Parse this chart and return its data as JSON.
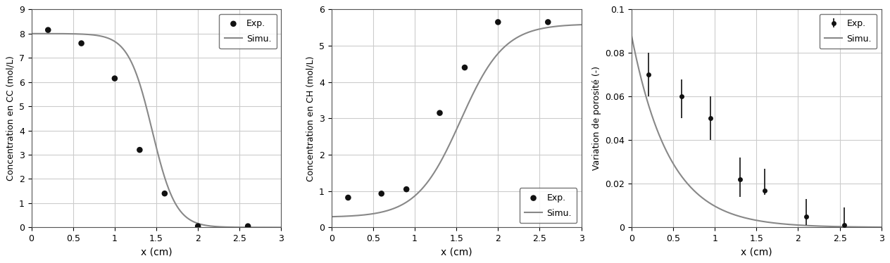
{
  "plot1": {
    "ylabel": "Concentration en CC (mol/L)",
    "xlabel": "x (cm)",
    "ylim": [
      0,
      9
    ],
    "xlim": [
      0,
      3
    ],
    "yticks": [
      0,
      1,
      2,
      3,
      4,
      5,
      6,
      7,
      8,
      9
    ],
    "ytick_labels": [
      "0",
      "1",
      "2",
      "3",
      "4",
      "5",
      "6",
      "7",
      "8",
      "9"
    ],
    "xticks": [
      0,
      0.5,
      1.0,
      1.5,
      2.0,
      2.5,
      3.0
    ],
    "xtick_labels": [
      "0",
      "0.5",
      "1",
      "1.5",
      "2",
      "2.5",
      "3"
    ],
    "exp_x": [
      0.2,
      0.6,
      1.0,
      1.3,
      1.6,
      2.0,
      2.6
    ],
    "exp_y": [
      8.15,
      7.6,
      6.15,
      3.2,
      1.4,
      0.05,
      0.05
    ],
    "simu_x0": 1.45,
    "simu_k": 3.2,
    "simu_y0": 8.0,
    "legend_loc": "upper right"
  },
  "plot2": {
    "ylabel": "Concentration en CH (mol/L)",
    "xlabel": "x (cm)",
    "ylim": [
      0,
      6
    ],
    "xlim": [
      0,
      3
    ],
    "yticks": [
      0,
      1,
      2,
      3,
      4,
      5,
      6
    ],
    "ytick_labels": [
      "0",
      "1",
      "2",
      "3",
      "4",
      "5",
      "6"
    ],
    "xticks": [
      0,
      0.5,
      1.0,
      1.5,
      2.0,
      2.5,
      3.0
    ],
    "xtick_labels": [
      "0",
      "0.5",
      "1",
      "1.5",
      "2",
      "2.5",
      "3"
    ],
    "exp_x": [
      0.2,
      0.6,
      0.9,
      1.3,
      1.6,
      2.0,
      2.6
    ],
    "exp_y": [
      0.82,
      0.93,
      1.05,
      3.15,
      4.4,
      5.65,
      5.65
    ],
    "simu_ymin": 0.28,
    "simu_ymax": 5.6,
    "simu_x0": 1.55,
    "simu_k": 3.8,
    "legend_loc": "lower right"
  },
  "plot3": {
    "ylabel": "Variation de porosité (-)",
    "xlabel": "x (cm)",
    "ylim": [
      0,
      0.1
    ],
    "xlim": [
      0,
      3
    ],
    "yticks": [
      0,
      0.02,
      0.04,
      0.06,
      0.08,
      0.1
    ],
    "ytick_labels": [
      "0",
      "0.02",
      "0.04",
      "0.06",
      "0.08",
      "0.1"
    ],
    "xticks": [
      0,
      0.5,
      1.0,
      1.5,
      2.0,
      2.5,
      3.0
    ],
    "xtick_labels": [
      "0",
      "0.5",
      "1",
      "1.5",
      "2",
      "2.5",
      "3"
    ],
    "exp_x": [
      0.2,
      0.6,
      0.95,
      1.3,
      1.6,
      2.1,
      2.55
    ],
    "exp_y": [
      0.07,
      0.06,
      0.05,
      0.022,
      0.017,
      0.005,
      0.001
    ],
    "exp_yerr_lo": [
      0.01,
      0.01,
      0.01,
      0.008,
      0.002,
      0.004,
      0.001
    ],
    "exp_yerr_hi": [
      0.01,
      0.008,
      0.01,
      0.01,
      0.01,
      0.008,
      0.008
    ],
    "simu_y0": 0.088,
    "simu_k": 2.2,
    "legend_loc": "upper right"
  },
  "line_color": "#888888",
  "dot_color": "#111111",
  "dot_size": 38,
  "legend_exp": "Exp.",
  "legend_simu": "Simu.",
  "background_color": "#ffffff",
  "grid_color": "#cccccc"
}
